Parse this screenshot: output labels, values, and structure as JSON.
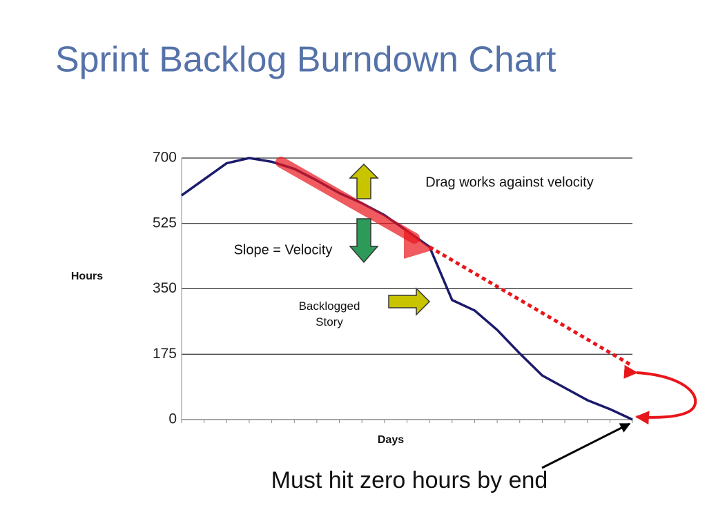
{
  "title": "Sprint Backlog Burndown Chart",
  "chart_data": {
    "type": "line",
    "xlabel": "Days",
    "ylabel": "Hours",
    "categories": [
      null,
      null,
      null,
      null,
      null,
      null,
      null,
      null,
      null,
      null,
      null,
      null,
      null,
      null,
      null,
      null,
      null,
      null,
      null,
      null,
      null
    ],
    "series": [
      {
        "color": "#1c1a6b",
        "values": [
          600,
          643,
          686,
          700,
          690,
          671,
          640,
          606,
          579,
          547,
          505,
          462,
          320,
          292,
          240,
          177,
          118,
          85,
          52,
          28,
          0
        ]
      },
      {
        "color": "#e8161b",
        "dashed": true,
        "values": [
          null,
          null,
          null,
          null,
          null,
          null,
          null,
          null,
          null,
          null,
          null,
          462,
          null,
          null,
          null,
          null,
          null,
          null,
          null,
          null,
          144
        ]
      }
    ],
    "ylim": [
      0,
      700
    ],
    "yticks": [
      0,
      175,
      350,
      525,
      700
    ],
    "grid": true,
    "annotations": [
      "Drag works against velocity",
      "Slope = Velocity",
      "Backlogged Story"
    ]
  },
  "caption": "Must hit zero hours by end"
}
